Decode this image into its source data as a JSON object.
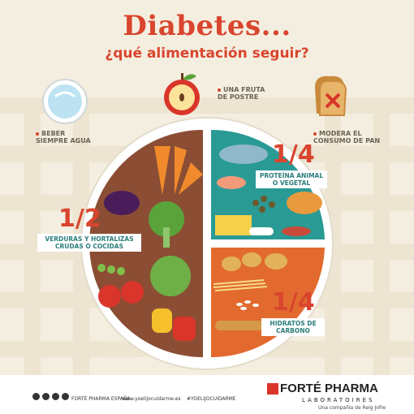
{
  "title": "Diabetes...",
  "subtitle": "¿qué alimentación seguir?",
  "labels": {
    "water": [
      "BEBER",
      "SIEMPRE AGUA"
    ],
    "fruit": [
      "UNA FRUTA",
      "DE POSTRE"
    ],
    "bread": [
      "MODERA EL",
      "CONSUMO DE PAN"
    ]
  },
  "plate": {
    "veg_fraction": "1/2",
    "veg_label": [
      "VERDURAS Y HORTALIZAS",
      "CRUDAS O COCIDAS"
    ],
    "protein_fraction": "1/4",
    "protein_label": [
      "PROTEÍNA ANIMAL",
      "O VEGETAL"
    ],
    "carb_fraction": "1/4",
    "carb_label": [
      "HIDRATOS DE",
      "CARBONO"
    ]
  },
  "footer": {
    "social_handle": "FORTÉ PHARMA ESPAÑA",
    "website": "www.yoelijocuidarme.es",
    "hashtag": "#YOELIJOCUIDARME",
    "brand": "FORTÉ PHARMA",
    "brand_sub": "LABORATOIRES",
    "brand_tagline": "Una compañía de Reig Jofre"
  },
  "colors": {
    "accent": "#d9452e",
    "veg_section": "#8b4e34",
    "protein_section": "#2a9a95",
    "carb_section": "#e36a2f",
    "background": "#f4eee0"
  },
  "icons": [
    "water-glass-icon",
    "apple-icon",
    "bread-icon",
    "social-icons",
    "forte-pharma-logo-icon"
  ]
}
